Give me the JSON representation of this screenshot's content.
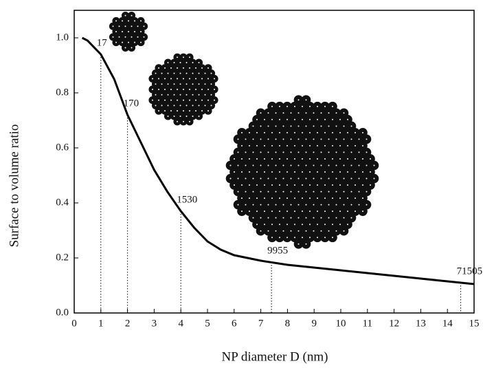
{
  "chart_data": {
    "type": "line",
    "xlabel": "NP diameter D (nm)",
    "ylabel": "Surface to volume ratio",
    "xlim": [
      0,
      15
    ],
    "ylim": [
      0,
      1.1
    ],
    "xticks": [
      0,
      1,
      2,
      3,
      4,
      5,
      6,
      7,
      8,
      9,
      10,
      11,
      12,
      13,
      14,
      15
    ],
    "yticks": [
      {
        "value": 0,
        "label": "0.0"
      },
      {
        "value": 0.2,
        "label": "0.2"
      },
      {
        "value": 0.4,
        "label": "0.4"
      },
      {
        "value": 0.6,
        "label": "0.6"
      },
      {
        "value": 0.8,
        "label": "0.8"
      },
      {
        "value": 1,
        "label": "1.0"
      }
    ],
    "color": "#000000",
    "x": [
      0.3,
      0.5,
      1,
      1.5,
      2,
      2.5,
      3,
      3.5,
      4,
      4.5,
      5,
      5.5,
      6,
      7,
      8,
      9,
      10,
      11,
      12,
      13,
      14,
      15
    ],
    "values": [
      1.0,
      0.99,
      0.94,
      0.85,
      0.72,
      0.62,
      0.52,
      0.44,
      0.37,
      0.31,
      0.26,
      0.23,
      0.21,
      0.19,
      0.175,
      0.165,
      0.155,
      0.145,
      0.135,
      0.125,
      0.115,
      0.105
    ],
    "annotations": [
      {
        "text": "17",
        "x": 1,
        "y": 0.94
      },
      {
        "text": "170",
        "x": 2,
        "y": 0.72
      },
      {
        "text": "1530",
        "x": 4,
        "y": 0.37
      },
      {
        "text": "9955",
        "x": 7.4,
        "y": 0.185
      },
      {
        "text": "71505",
        "x": 14.5,
        "y": 0.11
      }
    ]
  }
}
